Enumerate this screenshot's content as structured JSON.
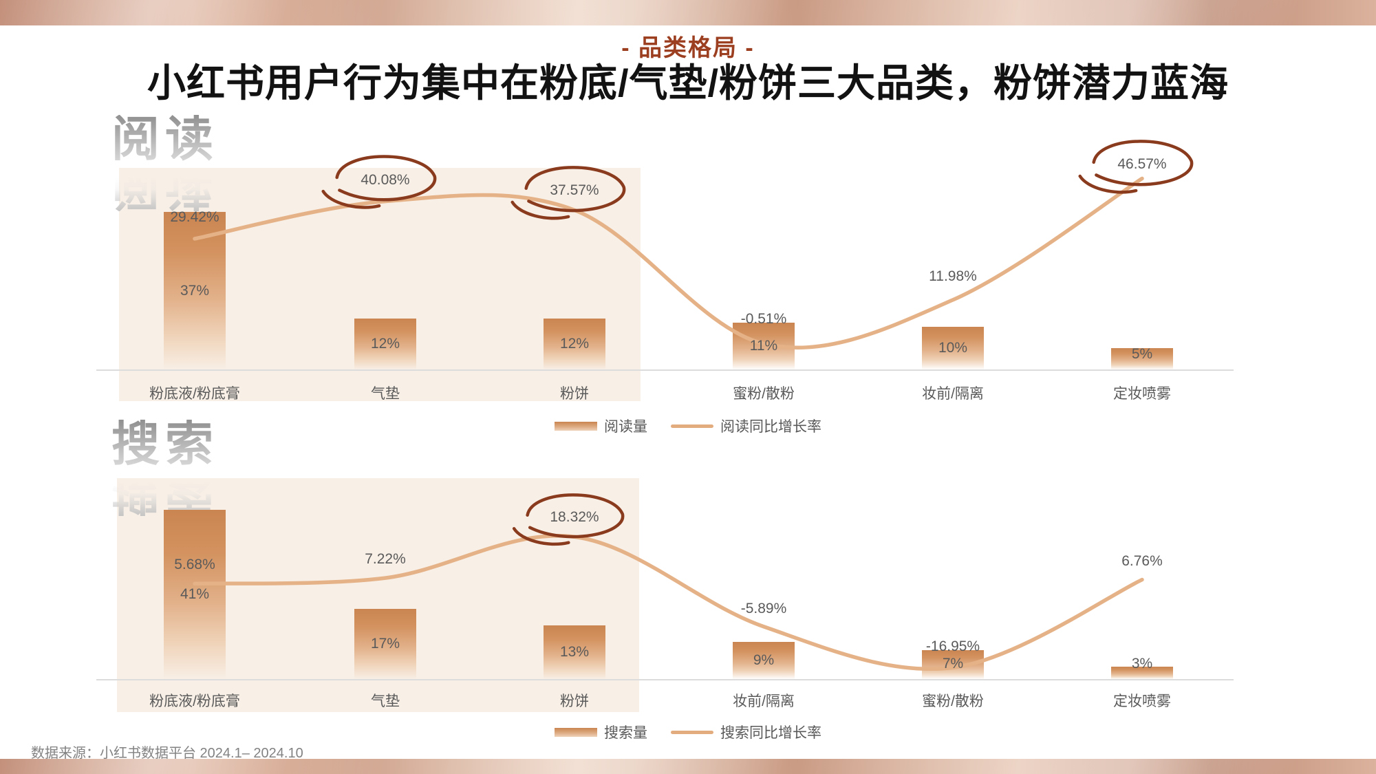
{
  "page": {
    "kicker": "- 品类格局 -",
    "title": "小红书用户行为集中在粉底/气垫/粉饼三大品类，粉饼潜力蓝海",
    "source_note": "数据来源：小红书数据平台 2024.1– 2024.10"
  },
  "colors": {
    "accent_title": "#9c3e20",
    "bar_gradient_top": "#ca8551",
    "bar_gradient_bottom": "#f2ddc8",
    "growth_line": "#e5b287",
    "annotation_circle": "#8a3a1d",
    "highlight_background": "#f8efe6",
    "label_text": "#595959"
  },
  "chart_data": [
    {
      "type": "bar",
      "combo": "bar+line",
      "watermark": "阅读",
      "categories": [
        "粉底液/粉底膏",
        "气垫",
        "粉饼",
        "蜜粉/散粉",
        "妆前/隔离",
        "定妆喷雾"
      ],
      "highlighted_categories": [
        "粉底液/粉底膏",
        "气垫",
        "粉饼"
      ],
      "series": [
        {
          "name": "阅读量",
          "type": "bar",
          "unit": "%",
          "values": [
            37,
            12,
            12,
            11,
            10,
            5
          ],
          "labels": [
            "37%",
            "12%",
            "12%",
            "11%",
            "10%",
            "5%"
          ]
        },
        {
          "name": "阅读同比增长率",
          "type": "line",
          "unit": "%",
          "values": [
            29.42,
            40.08,
            37.57,
            -0.51,
            11.98,
            46.57
          ],
          "labels": [
            "29.42%",
            "40.08%",
            "37.57%",
            "-0.51%",
            "11.98%",
            "46.57%"
          ],
          "circled_labels": [
            "40.08%",
            "37.57%",
            "46.57%"
          ]
        }
      ]
    },
    {
      "type": "bar",
      "combo": "bar+line",
      "watermark": "搜索",
      "categories": [
        "粉底液/粉底膏",
        "气垫",
        "粉饼",
        "妆前/隔离",
        "蜜粉/散粉",
        "定妆喷雾"
      ],
      "highlighted_categories": [
        "粉底液/粉底膏",
        "气垫",
        "粉饼"
      ],
      "series": [
        {
          "name": "搜索量",
          "type": "bar",
          "unit": "%",
          "values": [
            41,
            17,
            13,
            9,
            7,
            3
          ],
          "labels": [
            "41%",
            "17%",
            "13%",
            "9%",
            "7%",
            "3%"
          ]
        },
        {
          "name": "搜索同比增长率",
          "type": "line",
          "unit": "%",
          "values": [
            5.68,
            7.22,
            18.32,
            -5.89,
            -16.95,
            6.76
          ],
          "labels": [
            "5.68%",
            "7.22%",
            "18.32%",
            "-5.89%",
            "-16.95%",
            "6.76%"
          ],
          "circled_labels": [
            "18.32%"
          ]
        }
      ]
    }
  ]
}
